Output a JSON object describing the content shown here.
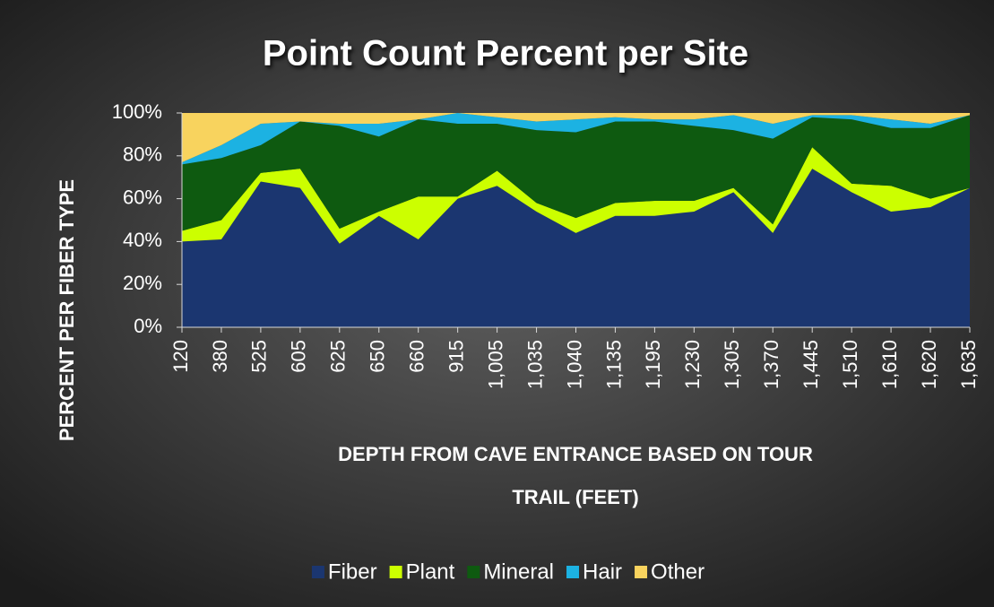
{
  "chart_data": {
    "type": "area",
    "stacked": true,
    "title": "Point Count Percent per Site",
    "y_label": "PERCENT PER FIBER TYPE",
    "x_label": [
      "DEPTH FROM CAVE ENTRANCE BASED ON TOUR",
      "TRAIL (FEET)"
    ],
    "categories": [
      "120",
      "380",
      "525",
      "605",
      "625",
      "650",
      "660",
      "915",
      "1,005",
      "1,035",
      "1,040",
      "1,135",
      "1,195",
      "1,230",
      "1,305",
      "1,370",
      "1,445",
      "1,510",
      "1,610",
      "1,620",
      "1,635"
    ],
    "series": [
      {
        "name": "Fiber",
        "color": "#1b3670",
        "values": [
          40,
          41,
          68,
          65,
          39,
          52,
          41,
          60,
          66,
          54,
          44,
          52,
          52,
          54,
          63,
          44,
          74,
          63,
          54,
          56,
          65
        ]
      },
      {
        "name": "Plant",
        "color": "#ccff00",
        "values": [
          5,
          9,
          4,
          9,
          7,
          2,
          20,
          1,
          7,
          4,
          7,
          6,
          7,
          5,
          2,
          4,
          10,
          4,
          12,
          4,
          0
        ]
      },
      {
        "name": "Mineral",
        "color": "#0e5a10",
        "values": [
          31,
          29,
          13,
          22,
          48,
          35,
          36,
          34,
          22,
          34,
          40,
          38,
          37,
          35,
          27,
          40,
          14,
          30,
          27,
          33,
          34
        ]
      },
      {
        "name": "Hair",
        "color": "#1cb2e2",
        "values": [
          1,
          6,
          10,
          0,
          1,
          6,
          0,
          5,
          3,
          4,
          6,
          2,
          1,
          3,
          7,
          7,
          1,
          2,
          4,
          2,
          0
        ]
      },
      {
        "name": "Other",
        "color": "#f8d35e",
        "values": [
          23,
          15,
          5,
          4,
          5,
          5,
          3,
          0,
          2,
          4,
          3,
          2,
          3,
          3,
          1,
          5,
          1,
          1,
          3,
          5,
          1
        ]
      }
    ],
    "ylim": [
      0,
      100
    ],
    "yticks": [
      {
        "value": 0,
        "label": "0%"
      },
      {
        "value": 20,
        "label": "20%"
      },
      {
        "value": 40,
        "label": "40%"
      },
      {
        "value": 60,
        "label": "60%"
      },
      {
        "value": 80,
        "label": "80%"
      },
      {
        "value": 100,
        "label": "100%"
      }
    ]
  }
}
